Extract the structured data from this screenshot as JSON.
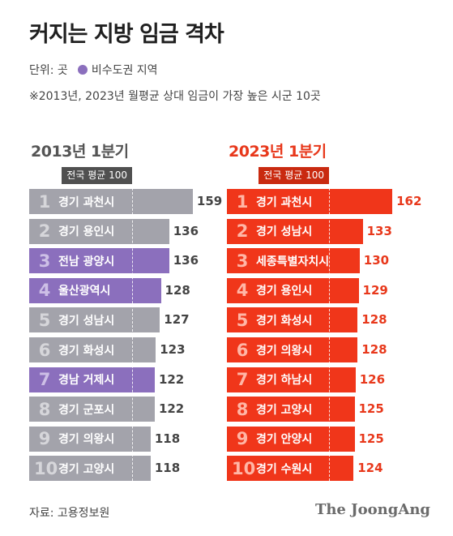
{
  "title": "커지는 지방 임금 격차",
  "unit_label": "단위: 곳",
  "legend_label": "비수도권 지역",
  "note": "※2013년, 2023년 월평균 상대 임금이 가장 높은 시군 10곳",
  "avg_label": "전국 평균 100",
  "source": "자료: 고용정보원",
  "logo": "The JoongAng",
  "colors": {
    "gray_bar": "#a3a3ab",
    "gray_rank": "#d6d6da",
    "purple_bar": "#8b6fbd",
    "purple_rank": "#cdbfe6",
    "red_bar": "#f0361a",
    "red_rank": "#ffb6a6",
    "red_avg_tag": "#c92a10",
    "gray_avg_tag": "#505050"
  },
  "chart_data": [
    {
      "type": "bar",
      "title": "2013년 1분기",
      "reference_line": 100,
      "categories": [
        "경기 과천시",
        "경기 용인시",
        "전남 광양시",
        "울산광역시",
        "경기 성남시",
        "경기 화성시",
        "경남 거제시",
        "경기 군포시",
        "경기 의왕시",
        "경기 고양시"
      ],
      "ranks": [
        "1",
        "2",
        "3",
        "4",
        "5",
        "6",
        "7",
        "8",
        "9",
        "10"
      ],
      "values": [
        159,
        136,
        136,
        128,
        127,
        123,
        122,
        122,
        118,
        118
      ],
      "non_capital": [
        false,
        false,
        true,
        true,
        false,
        false,
        true,
        false,
        false,
        false
      ]
    },
    {
      "type": "bar",
      "title": "2023년 1분기",
      "reference_line": 100,
      "categories": [
        "경기 과천시",
        "경기 성남시",
        "세종특별자치시",
        "경기 용인시",
        "경기 화성시",
        "경기 의왕시",
        "경기 하남시",
        "경기 고양시",
        "경기 안양시",
        "경기 수원시"
      ],
      "ranks": [
        "1",
        "2",
        "3",
        "4",
        "5",
        "6",
        "7",
        "8",
        "9",
        "10"
      ],
      "values": [
        162,
        133,
        130,
        129,
        128,
        128,
        126,
        125,
        125,
        124
      ],
      "non_capital": [
        false,
        false,
        true,
        false,
        false,
        false,
        false,
        false,
        false,
        false
      ]
    }
  ]
}
